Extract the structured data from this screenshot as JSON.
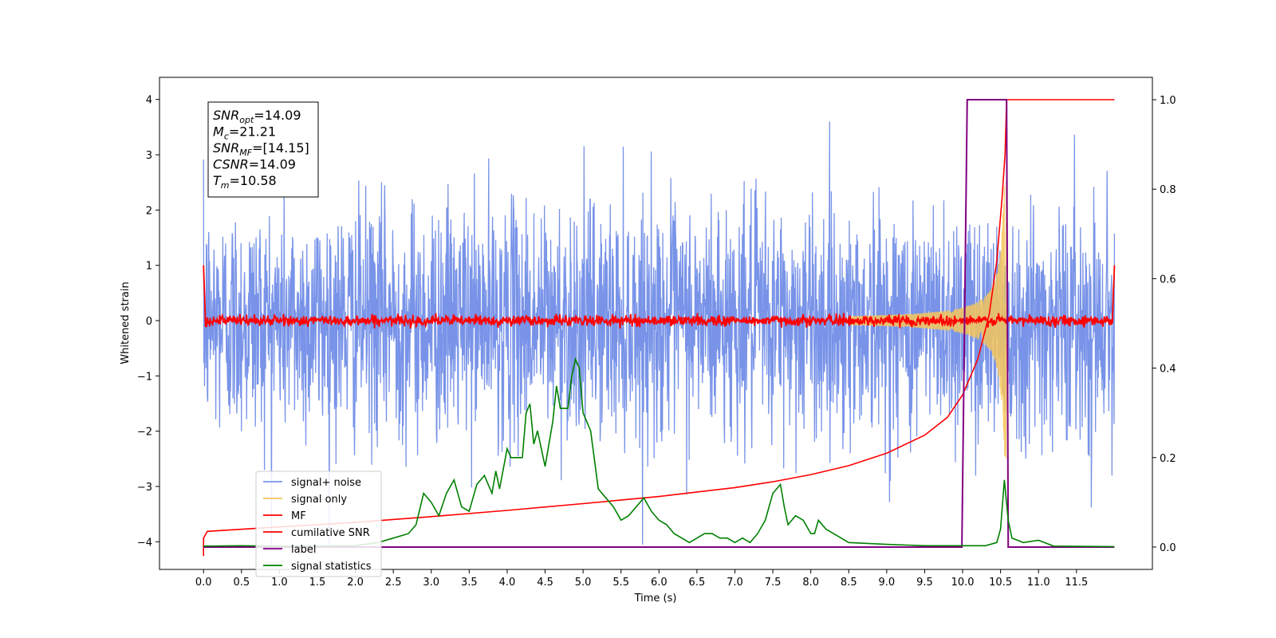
{
  "chart_data": {
    "type": "line",
    "title": "",
    "xlabel": "Time (s)",
    "ylabel": "Whitened strain",
    "xlim": [
      -0.58,
      12.5
    ],
    "ylim": [
      -4.5,
      4.4
    ],
    "y2lim": [
      -0.05,
      1.05
    ],
    "x_ticks": [
      0.0,
      0.5,
      1.0,
      1.5,
      2.0,
      2.5,
      3.0,
      3.5,
      4.0,
      4.5,
      5.0,
      5.5,
      6.0,
      6.5,
      7.0,
      7.5,
      8.0,
      8.5,
      9.0,
      9.5,
      10.0,
      10.5,
      11.0,
      11.5
    ],
    "x_tick_labels": [
      "0.0",
      "0.5",
      "1.0",
      "1.5",
      "2.0",
      "2.5",
      "3.0",
      "3.5",
      "4.0",
      "4.5",
      "5.0",
      "5.5",
      "6.0",
      "6.5",
      "7.0",
      "7.5",
      "8.0",
      "8.5",
      "9.0",
      "9.5",
      "10.0",
      "10.5",
      "11.0",
      "11.5"
    ],
    "y_ticks": [
      -4,
      -3,
      -2,
      -1,
      0,
      1,
      2,
      3,
      4
    ],
    "y_tick_labels": [
      "−4",
      "−3",
      "−2",
      "−1",
      "0",
      "1",
      "2",
      "3",
      "4"
    ],
    "y2_ticks": [
      0.0,
      0.2,
      0.4,
      0.6,
      0.8,
      1.0
    ],
    "y2_tick_labels": [
      "0.0",
      "0.2",
      "0.4",
      "0.6",
      "0.8",
      "1.0"
    ],
    "grid": false,
    "legend_position": "lower-left",
    "annotation": {
      "lines": [
        {
          "base": "SNR",
          "sub": "opt",
          "value": "=14.09"
        },
        {
          "base": "M",
          "sub": "c",
          "value": "=21.21"
        },
        {
          "base": "SNR",
          "sub": "MF",
          "value": "=[14.15]"
        },
        {
          "base": "CSNR",
          "sub": "",
          "value": "=14.09"
        },
        {
          "base": "T",
          "sub": "m",
          "value": "=10.58"
        }
      ]
    },
    "series": [
      {
        "name": "signal+ noise",
        "axis": "left",
        "color": "#7893e8",
        "kind": "noise",
        "x_range": [
          0.0,
          12.0
        ],
        "sigma": 1.0,
        "extreme_range": [
          -4.1,
          4.0
        ]
      },
      {
        "name": "signal only",
        "axis": "left",
        "color": "#f5c55c",
        "kind": "chirp",
        "x_range": [
          8.5,
          10.58
        ],
        "peak_amplitude": 2.5
      },
      {
        "name": "MF",
        "axis": "left",
        "color": "#ff0000",
        "kind": "mf",
        "x_range": [
          0.0,
          12.0
        ],
        "start_value": 1.0,
        "end_value": 1.0,
        "noise_amplitude": 0.08
      },
      {
        "name": "cumilative SNR",
        "axis": "right",
        "color": "#ff0000",
        "x": [
          0.0,
          0.05,
          1.0,
          2.0,
          3.0,
          4.0,
          5.0,
          6.0,
          7.0,
          7.5,
          8.0,
          8.5,
          9.0,
          9.5,
          9.8,
          10.0,
          10.2,
          10.35,
          10.45,
          10.52,
          10.56,
          10.58,
          10.62,
          11.0,
          12.0
        ],
        "y": [
          0.02,
          0.035,
          0.045,
          0.055,
          0.068,
          0.082,
          0.097,
          0.113,
          0.133,
          0.146,
          0.162,
          0.182,
          0.21,
          0.25,
          0.29,
          0.34,
          0.42,
          0.52,
          0.64,
          0.78,
          0.88,
          1.0,
          1.0,
          1.0,
          1.0
        ]
      },
      {
        "name": "label",
        "axis": "right",
        "color": "#800080",
        "x": [
          0.0,
          9.99,
          10.06,
          10.58,
          10.6,
          12.0
        ],
        "y": [
          0.0,
          0.0,
          1.0,
          1.0,
          0.0,
          0.0
        ]
      },
      {
        "name": "signal statistics",
        "axis": "right",
        "color": "#008000",
        "x": [
          0.0,
          0.5,
          1.0,
          1.5,
          2.0,
          2.3,
          2.5,
          2.7,
          2.8,
          2.9,
          3.0,
          3.1,
          3.2,
          3.3,
          3.4,
          3.5,
          3.6,
          3.7,
          3.8,
          3.85,
          3.9,
          4.0,
          4.05,
          4.1,
          4.2,
          4.25,
          4.3,
          4.35,
          4.4,
          4.5,
          4.6,
          4.65,
          4.7,
          4.8,
          4.85,
          4.9,
          4.95,
          5.0,
          5.05,
          5.1,
          5.2,
          5.3,
          5.4,
          5.5,
          5.6,
          5.7,
          5.8,
          5.9,
          6.0,
          6.1,
          6.2,
          6.3,
          6.4,
          6.5,
          6.6,
          6.7,
          6.8,
          6.9,
          7.0,
          7.1,
          7.2,
          7.3,
          7.4,
          7.5,
          7.6,
          7.65,
          7.7,
          7.8,
          7.9,
          8.0,
          8.05,
          8.1,
          8.2,
          8.3,
          8.4,
          8.5,
          9.0,
          9.5,
          10.0,
          10.3,
          10.45,
          10.5,
          10.55,
          10.6,
          10.65,
          10.8,
          11.0,
          11.2,
          12.0
        ],
        "y": [
          0.002,
          0.003,
          0.002,
          0.002,
          0.003,
          0.01,
          0.02,
          0.03,
          0.05,
          0.12,
          0.1,
          0.07,
          0.12,
          0.15,
          0.09,
          0.08,
          0.14,
          0.16,
          0.12,
          0.17,
          0.13,
          0.22,
          0.2,
          0.2,
          0.2,
          0.3,
          0.32,
          0.23,
          0.26,
          0.18,
          0.28,
          0.36,
          0.31,
          0.31,
          0.38,
          0.42,
          0.4,
          0.3,
          0.28,
          0.26,
          0.13,
          0.11,
          0.09,
          0.06,
          0.07,
          0.09,
          0.11,
          0.08,
          0.06,
          0.05,
          0.03,
          0.02,
          0.01,
          0.02,
          0.03,
          0.03,
          0.02,
          0.02,
          0.01,
          0.02,
          0.01,
          0.03,
          0.06,
          0.12,
          0.14,
          0.09,
          0.05,
          0.07,
          0.06,
          0.03,
          0.03,
          0.06,
          0.04,
          0.03,
          0.02,
          0.01,
          0.006,
          0.003,
          0.003,
          0.003,
          0.01,
          0.04,
          0.15,
          0.06,
          0.02,
          0.01,
          0.015,
          0.002,
          0.001
        ]
      }
    ]
  }
}
